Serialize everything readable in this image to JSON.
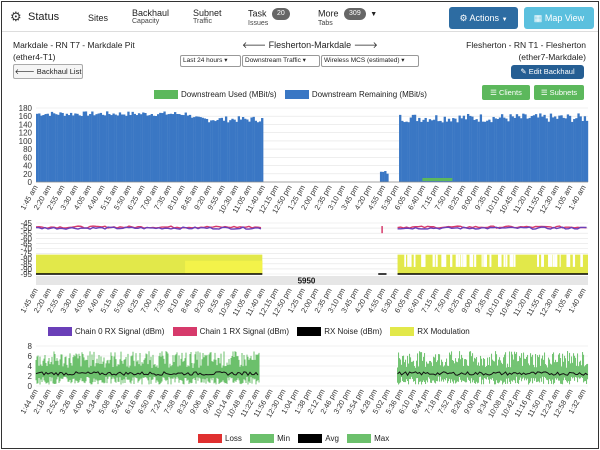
{
  "header": {
    "title": "Status",
    "nav": [
      {
        "label": "Sites",
        "sub": ""
      },
      {
        "label": "Backhaul",
        "sub": "Capacity"
      },
      {
        "label": "Subnet",
        "sub": "Traffic"
      },
      {
        "label": "Task",
        "sub": "Issues",
        "badge": "20"
      },
      {
        "label": "More",
        "sub": "Tabs",
        "badge": "309"
      }
    ],
    "actions_label": "Actions",
    "map_view_label": "Map View"
  },
  "link": {
    "left_title": "Markdale - RN T7 - Markdale Pit",
    "left_iface": "(ether4-T1)",
    "center_title": "Flesherton-Markdale",
    "right_title": "Flesherton - RN T1 - Flesherton",
    "right_iface": "(ether7-Markdale)",
    "backhaul_list_label": "Backhaul List",
    "edit_backhaul_label": "Edit Backhaul",
    "clients_label": "Clients",
    "subnets_label": "Subnets",
    "range_select": "Last 24 hours",
    "metric_select": "Downstream Traffic",
    "mcs_select": "Wireless MCS (estimated)"
  },
  "colors": {
    "accent": "#2d6ca2",
    "used": "#5cb85c",
    "remaining": "#3a77c4",
    "chain0": "#6a3fb8",
    "chain1": "#d63a6b",
    "noise": "#000000",
    "modulation": "#e2e84a"
  },
  "charts": {
    "traffic": {
      "legend": [
        "Downstream Used (MBit/s)",
        "Downstream Remaining (MBit/s)"
      ],
      "yticks": [
        "180",
        "160",
        "140",
        "120",
        "100",
        "80",
        "60",
        "40",
        "20",
        "0"
      ],
      "times": [
        "1:45 am",
        "2:20 am",
        "2:55 am",
        "3:30 am",
        "4:05 am",
        "4:40 am",
        "5:15 am",
        "5:50 am",
        "6:25 am",
        "7:00 am",
        "7:35 am",
        "8:10 am",
        "8:45 am",
        "9:20 am",
        "9:55 am",
        "10:30 am",
        "11:05 am",
        "11:40 am",
        "12:15 pm",
        "12:50 pm",
        "1:25 pm",
        "2:00 pm",
        "2:35 pm",
        "3:10 pm",
        "3:45 pm",
        "4:20 pm",
        "4:55 pm",
        "5:30 pm",
        "6:05 pm",
        "6:40 pm",
        "7:15 pm",
        "7:50 pm",
        "8:25 pm",
        "9:00 pm",
        "9:35 pm",
        "10:10 pm",
        "10:45 pm",
        "11:20 pm",
        "11:55 pm",
        "12:30 am",
        "1:05 am",
        "1:40 am"
      ]
    },
    "signal": {
      "legend": [
        "Chain 0 RX Signal (dBm)",
        "Chain 1 RX Signal (dBm)",
        "RX Noise (dBm)",
        "RX Modulation"
      ],
      "yticks": [
        "-45",
        "-50",
        "-55",
        "-60",
        "-65",
        "-70",
        "-75",
        "-80",
        "-85",
        "-90",
        "-95"
      ],
      "freq_label": "5950"
    },
    "latency": {
      "legend": [
        "Loss",
        "Min",
        "Avg",
        "Max"
      ],
      "yticks": [
        "8",
        "6",
        "4",
        "2",
        "0"
      ],
      "times": [
        "1:44 am",
        "2:18 am",
        "2:52 am",
        "3:26 am",
        "4:00 am",
        "4:34 am",
        "5:08 am",
        "5:42 am",
        "6:16 am",
        "6:50 am",
        "7:24 am",
        "7:58 am",
        "8:32 am",
        "9:06 am",
        "9:40 am",
        "10:14 am",
        "10:48 am",
        "11:22 am",
        "11:56 am",
        "12:30 pm",
        "1:04 pm",
        "1:38 pm",
        "2:12 pm",
        "2:46 pm",
        "3:20 pm",
        "3:54 pm",
        "4:28 pm",
        "5:02 pm",
        "5:36 pm",
        "6:10 pm",
        "6:44 pm",
        "7:18 pm",
        "7:52 pm",
        "8:26 pm",
        "9:00 pm",
        "9:34 pm",
        "10:08 pm",
        "10:42 pm",
        "11:16 pm",
        "11:50 pm",
        "12:24 am",
        "12:58 am",
        "1:32 am"
      ]
    }
  }
}
